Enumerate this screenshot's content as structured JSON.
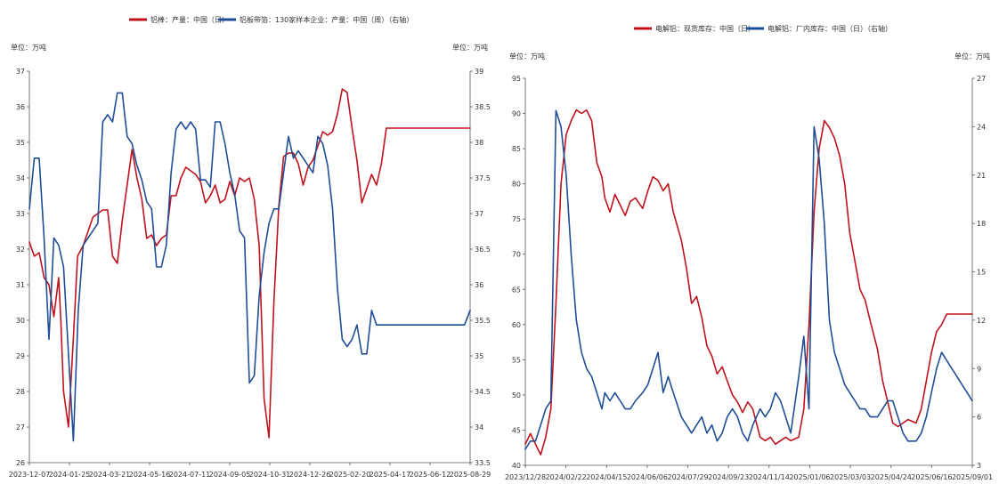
{
  "panels": [
    {
      "unit_left": "单位：万吨",
      "unit_right": "单位：万吨"
    },
    {
      "unit_left": "单位：万吨",
      "unit_right": "单位：万吨"
    }
  ],
  "chart_data": [
    {
      "type": "line",
      "title": "",
      "x_labels": [
        "2023-12-07",
        "2024-01-25",
        "2024-03-21",
        "2024-05-16",
        "2024-07-11",
        "2024-09-05",
        "2024-10-31",
        "2024-12-26",
        "2025-02-20",
        "2025-04-17",
        "2025-06-12",
        "2025-08-29"
      ],
      "x_range": [
        "2023-12-07",
        "2025-08-29"
      ],
      "ylim_left": [
        26,
        37
      ],
      "ylim_right": [
        33.5,
        38.9
      ],
      "yticks_left": [
        "26",
        "27",
        "28",
        "29",
        "30",
        "31",
        "32",
        "33",
        "34",
        "35",
        "36",
        "37"
      ],
      "yticks_right": [
        "33.5",
        "34",
        "34.5",
        "35",
        "35.5",
        "36",
        "36.5",
        "37",
        "37.5",
        "38",
        "38.5",
        "39"
      ],
      "grid": false,
      "legend_position": "top",
      "series": [
        {
          "name": "铝棒：产量：中国（日）",
          "axis": "left",
          "color": "#c0121c",
          "x": [
            "2023-12-07",
            "2023-12-14",
            "2023-12-21",
            "2023-12-28",
            "2024-01-04",
            "2024-01-11",
            "2024-01-18",
            "2024-01-21",
            "2024-01-25",
            "2024-02-01",
            "2024-02-08",
            "2024-02-14",
            "2024-02-22",
            "2024-02-29",
            "2024-03-07",
            "2024-03-14",
            "2024-03-21",
            "2024-03-28",
            "2024-04-04",
            "2024-04-11",
            "2024-04-18",
            "2024-04-25",
            "2024-05-02",
            "2024-05-09",
            "2024-05-16",
            "2024-05-23",
            "2024-05-30",
            "2024-06-06",
            "2024-06-13",
            "2024-06-20",
            "2024-06-27",
            "2024-07-04",
            "2024-07-11",
            "2024-07-18",
            "2024-07-25",
            "2024-08-01",
            "2024-08-08",
            "2024-08-15",
            "2024-08-22",
            "2024-08-29",
            "2024-09-05",
            "2024-09-12",
            "2024-09-19",
            "2024-09-26",
            "2024-10-03",
            "2024-10-10",
            "2024-10-17",
            "2024-10-24",
            "2024-10-31",
            "2024-11-07",
            "2024-11-14",
            "2024-11-21",
            "2024-11-28",
            "2024-12-05",
            "2024-12-12",
            "2024-12-19",
            "2024-12-26",
            "2025-01-02",
            "2025-01-09",
            "2025-01-16",
            "2025-01-23",
            "2025-01-30",
            "2025-02-06",
            "2025-02-13",
            "2025-02-20",
            "2025-02-27",
            "2025-03-06",
            "2025-03-13",
            "2025-03-20",
            "2025-03-27",
            "2025-04-03",
            "2025-04-10",
            "2025-04-17",
            "2025-04-24",
            "2025-05-01",
            "2025-05-08",
            "2025-05-15",
            "2025-05-22",
            "2025-05-29",
            "2025-06-05",
            "2025-06-12",
            "2025-06-19",
            "2025-06-26",
            "2025-07-03",
            "2025-07-10",
            "2025-07-17",
            "2025-07-24",
            "2025-07-31",
            "2025-08-07",
            "2025-08-14",
            "2025-08-21",
            "2025-08-29"
          ],
          "y": [
            32.2,
            31.8,
            31.9,
            31.2,
            31.0,
            30.1,
            31.2,
            30.0,
            28.0,
            27.0,
            29.5,
            31.8,
            32.1,
            32.5,
            32.9,
            33.0,
            33.1,
            33.1,
            31.8,
            31.6,
            32.8,
            33.8,
            34.8,
            34.0,
            33.4,
            32.3,
            32.4,
            32.1,
            32.3,
            32.4,
            33.5,
            33.5,
            34.0,
            34.3,
            34.2,
            34.1,
            33.9,
            33.3,
            33.5,
            33.8,
            33.3,
            33.4,
            33.9,
            33.5,
            34.0,
            33.9,
            34.0,
            33.4,
            32.1,
            27.8,
            26.7,
            30.5,
            33.2,
            34.6,
            34.7,
            34.7,
            34.4,
            33.8,
            34.3,
            34.5,
            34.9,
            35.3,
            35.2,
            35.3,
            35.8,
            36.5,
            36.4,
            35.4,
            34.5,
            33.3,
            33.7,
            34.1,
            33.8,
            34.4,
            35.4,
            35.4,
            35.4,
            35.4,
            35.4,
            35.4,
            35.4,
            35.4,
            35.4,
            35.4,
            35.4,
            35.4,
            35.4,
            35.4,
            35.4,
            35.4,
            35.4,
            35.4
          ]
        },
        {
          "name": "铝板带箔：130家样本企业：产量：中国（周）（右轴）",
          "axis": "right",
          "color": "#1f4e96",
          "x": [
            "2023-12-07",
            "2023-12-14",
            "2023-12-21",
            "2023-12-28",
            "2024-01-04",
            "2024-01-11",
            "2024-01-18",
            "2024-01-25",
            "2024-02-01",
            "2024-02-08",
            "2024-02-15",
            "2024-02-22",
            "2024-02-29",
            "2024-03-07",
            "2024-03-14",
            "2024-03-21",
            "2024-03-28",
            "2024-04-04",
            "2024-04-11",
            "2024-04-18",
            "2024-04-25",
            "2024-05-02",
            "2024-05-09",
            "2024-05-16",
            "2024-05-23",
            "2024-05-30",
            "2024-06-06",
            "2024-06-13",
            "2024-06-20",
            "2024-06-27",
            "2024-07-04",
            "2024-07-11",
            "2024-07-18",
            "2024-07-25",
            "2024-08-01",
            "2024-08-08",
            "2024-08-15",
            "2024-08-22",
            "2024-08-29",
            "2024-09-05",
            "2024-09-12",
            "2024-09-19",
            "2024-09-26",
            "2024-10-03",
            "2024-10-10",
            "2024-10-17",
            "2024-10-24",
            "2024-10-31",
            "2024-11-07",
            "2024-11-14",
            "2024-11-21",
            "2024-11-28",
            "2024-12-05",
            "2024-12-12",
            "2024-12-19",
            "2024-12-26",
            "2025-01-02",
            "2025-01-09",
            "2025-01-16",
            "2025-01-23",
            "2025-01-30",
            "2025-02-06",
            "2025-02-13",
            "2025-02-20",
            "2025-02-27",
            "2025-03-06",
            "2025-03-13",
            "2025-03-20",
            "2025-03-27",
            "2025-04-03",
            "2025-04-10",
            "2025-04-17",
            "2025-04-24",
            "2025-05-01",
            "2025-05-08",
            "2025-05-15",
            "2025-05-22",
            "2025-05-29",
            "2025-06-05",
            "2025-06-12",
            "2025-06-19",
            "2025-06-26",
            "2025-07-03",
            "2025-07-10",
            "2025-07-17",
            "2025-07-24",
            "2025-07-31",
            "2025-08-07",
            "2025-08-14",
            "2025-08-21",
            "2025-08-29"
          ],
          "y": [
            37.0,
            37.7,
            37.7,
            36.6,
            35.2,
            36.6,
            36.5,
            36.2,
            35.0,
            33.8,
            35.6,
            36.5,
            36.6,
            36.7,
            36.8,
            38.2,
            38.3,
            38.2,
            38.6,
            38.6,
            38.0,
            37.9,
            37.6,
            37.4,
            37.1,
            37.0,
            36.2,
            36.2,
            36.5,
            37.5,
            38.1,
            38.2,
            38.1,
            38.2,
            38.1,
            37.4,
            37.4,
            37.3,
            38.2,
            38.2,
            37.9,
            37.5,
            37.2,
            36.7,
            36.6,
            34.6,
            34.7,
            35.8,
            36.4,
            36.8,
            37.0,
            37.0,
            37.5,
            38.0,
            37.7,
            37.8,
            37.7,
            37.6,
            37.5,
            38.0,
            37.9,
            37.6,
            37.0,
            35.9,
            35.2,
            35.1,
            35.2,
            35.4,
            35.0,
            35.0,
            35.6,
            35.4,
            35.4,
            35.4,
            35.4,
            35.4,
            35.4,
            35.4,
            35.4,
            35.4,
            35.4,
            35.4,
            35.4,
            35.4,
            35.4,
            35.4,
            35.4,
            35.4,
            35.4,
            35.4,
            35.6
          ]
        }
      ]
    },
    {
      "type": "line",
      "title": "",
      "x_labels": [
        "2023/12/28",
        "2024/02/22",
        "2024/04/15",
        "2024/06/06",
        "2024/07/29",
        "2024/09/23",
        "2024/11/14",
        "2025/01/06",
        "2025/03/03",
        "2025/04/24",
        "2025/06/16",
        "2025/09/01"
      ],
      "x_range": [
        "2023/12/28",
        "2025/09/01"
      ],
      "ylim_left": [
        40,
        95
      ],
      "ylim_right": [
        3,
        27
      ],
      "yticks_left": [
        "40",
        "45",
        "50",
        "55",
        "60",
        "65",
        "70",
        "75",
        "80",
        "85",
        "90",
        "95"
      ],
      "yticks_right": [
        "3",
        "6",
        "9",
        "12",
        "15",
        "18",
        "21",
        "24",
        "27"
      ],
      "grid": false,
      "legend_position": "top",
      "series": [
        {
          "name": "电解铝：现货库存：中国（日）",
          "axis": "left",
          "color": "#c0121c",
          "x": [
            "2023/12/28",
            "2024/01/04",
            "2024/01/11",
            "2024/01/18",
            "2024/01/25",
            "2024/02/01",
            "2024/02/08",
            "2024/02/15",
            "2024/02/22",
            "2024/02/29",
            "2024/03/07",
            "2024/03/14",
            "2024/03/21",
            "2024/03/28",
            "2024/04/04",
            "2024/04/11",
            "2024/04/15",
            "2024/04/22",
            "2024/04/29",
            "2024/05/06",
            "2024/05/13",
            "2024/05/20",
            "2024/05/27",
            "2024/06/06",
            "2024/06/13",
            "2024/06/20",
            "2024/06/27",
            "2024/07/04",
            "2024/07/11",
            "2024/07/18",
            "2024/07/29",
            "2024/08/05",
            "2024/08/12",
            "2024/08/19",
            "2024/08/26",
            "2024/09/02",
            "2024/09/09",
            "2024/09/16",
            "2024/09/23",
            "2024/09/30",
            "2024/10/07",
            "2024/10/14",
            "2024/10/21",
            "2024/10/28",
            "2024/11/04",
            "2024/11/14",
            "2024/11/21",
            "2024/11/28",
            "2024/12/05",
            "2024/12/12",
            "2024/12/19",
            "2024/12/26",
            "2025/01/06",
            "2025/01/13",
            "2025/01/20",
            "2025/01/27",
            "2025/02/03",
            "2025/02/10",
            "2025/02/17",
            "2025/02/24",
            "2025/03/03",
            "2025/03/10",
            "2025/03/17",
            "2025/03/24",
            "2025/03/31",
            "2025/04/07",
            "2025/04/14",
            "2025/04/24",
            "2025/05/01",
            "2025/05/08",
            "2025/05/15",
            "2025/05/22",
            "2025/05/29",
            "2025/06/05",
            "2025/06/16",
            "2025/06/23",
            "2025/06/30",
            "2025/07/07",
            "2025/07/14",
            "2025/07/21",
            "2025/07/28",
            "2025/08/04",
            "2025/08/11",
            "2025/08/18",
            "2025/08/25",
            "2025/09/01"
          ],
          "y": [
            43.0,
            44.5,
            43.0,
            41.5,
            44.0,
            48.0,
            63.0,
            80.0,
            87.0,
            89.0,
            90.5,
            90.0,
            90.5,
            89.0,
            83.0,
            81.0,
            78.0,
            76.0,
            78.5,
            77.0,
            75.5,
            77.5,
            78.0,
            76.5,
            79.0,
            81.0,
            80.5,
            79.0,
            80.0,
            76.0,
            72.0,
            68.0,
            63.0,
            64.0,
            61.0,
            57.0,
            55.5,
            53.0,
            54.0,
            52.0,
            50.0,
            49.0,
            47.5,
            49.0,
            48.0,
            44.0,
            43.5,
            44.0,
            43.0,
            43.5,
            44.0,
            43.5,
            44.0,
            48.0,
            60.0,
            76.0,
            85.0,
            89.0,
            88.0,
            86.5,
            84.0,
            80.0,
            73.0,
            69.0,
            65.0,
            63.5,
            60.5,
            56.5,
            52.0,
            49.0,
            46.0,
            45.5,
            46.0,
            46.5,
            46.0,
            48.0,
            52.0,
            56.0,
            59.0,
            60.0,
            61.5,
            61.5,
            61.5,
            61.5,
            61.5,
            61.5
          ]
        },
        {
          "name": "电解铝：厂内库存：中国（日）（右轴）",
          "axis": "right",
          "color": "#1f4e96",
          "x": [
            "2023/12/28",
            "2024/01/04",
            "2024/01/11",
            "2024/01/18",
            "2024/01/25",
            "2024/02/01",
            "2024/02/08",
            "2024/02/15",
            "2024/02/22",
            "2024/02/29",
            "2024/03/07",
            "2024/03/14",
            "2024/03/21",
            "2024/03/28",
            "2024/04/04",
            "2024/04/11",
            "2024/04/15",
            "2024/04/22",
            "2024/04/29",
            "2024/05/06",
            "2024/05/13",
            "2024/05/20",
            "2024/05/27",
            "2024/06/06",
            "2024/06/13",
            "2024/06/20",
            "2024/06/27",
            "2024/07/04",
            "2024/07/11",
            "2024/07/18",
            "2024/07/29",
            "2024/08/05",
            "2024/08/12",
            "2024/08/19",
            "2024/08/26",
            "2024/09/02",
            "2024/09/09",
            "2024/09/16",
            "2024/09/23",
            "2024/09/30",
            "2024/10/07",
            "2024/10/14",
            "2024/10/21",
            "2024/10/28",
            "2024/11/04",
            "2024/11/14",
            "2024/11/21",
            "2024/11/28",
            "2024/12/05",
            "2024/12/12",
            "2024/12/19",
            "2024/12/26",
            "2025/01/06",
            "2025/01/13",
            "2025/01/20",
            "2025/01/27",
            "2025/02/03",
            "2025/02/10",
            "2025/02/17",
            "2025/02/24",
            "2025/03/03",
            "2025/03/10",
            "2025/03/17",
            "2025/03/24",
            "2025/03/31",
            "2025/04/07",
            "2025/04/14",
            "2025/04/24",
            "2025/05/01",
            "2025/05/08",
            "2025/05/15",
            "2025/05/22",
            "2025/05/29",
            "2025/06/05",
            "2025/06/16",
            "2025/06/23",
            "2025/06/30",
            "2025/07/07",
            "2025/07/14",
            "2025/07/21",
            "2025/07/28",
            "2025/08/04",
            "2025/08/11",
            "2025/08/18",
            "2025/08/25",
            "2025/09/01"
          ],
          "y": [
            4.0,
            4.5,
            4.5,
            5.5,
            6.5,
            7.0,
            25.0,
            24.0,
            21.0,
            16.0,
            12.0,
            10.0,
            9.0,
            8.5,
            7.5,
            6.5,
            7.5,
            7.0,
            7.5,
            7.0,
            6.5,
            6.5,
            7.0,
            7.5,
            8.0,
            9.0,
            10.0,
            7.5,
            8.5,
            7.5,
            6.0,
            5.5,
            5.0,
            5.5,
            6.0,
            5.0,
            5.5,
            4.5,
            5.0,
            6.0,
            6.5,
            6.0,
            5.0,
            4.5,
            5.5,
            6.5,
            6.0,
            6.5,
            7.5,
            7.0,
            6.0,
            5.0,
            8.5,
            11.0,
            6.5,
            24.0,
            22.0,
            18.0,
            12.0,
            10.0,
            9.0,
            8.0,
            7.5,
            7.0,
            6.5,
            6.5,
            6.0,
            6.0,
            6.5,
            7.0,
            7.0,
            6.0,
            5.0,
            4.5,
            4.5,
            5.0,
            6.0,
            7.5,
            9.0,
            10.0,
            9.5,
            9.0,
            8.5,
            8.0,
            7.5,
            7.0
          ]
        }
      ]
    }
  ]
}
